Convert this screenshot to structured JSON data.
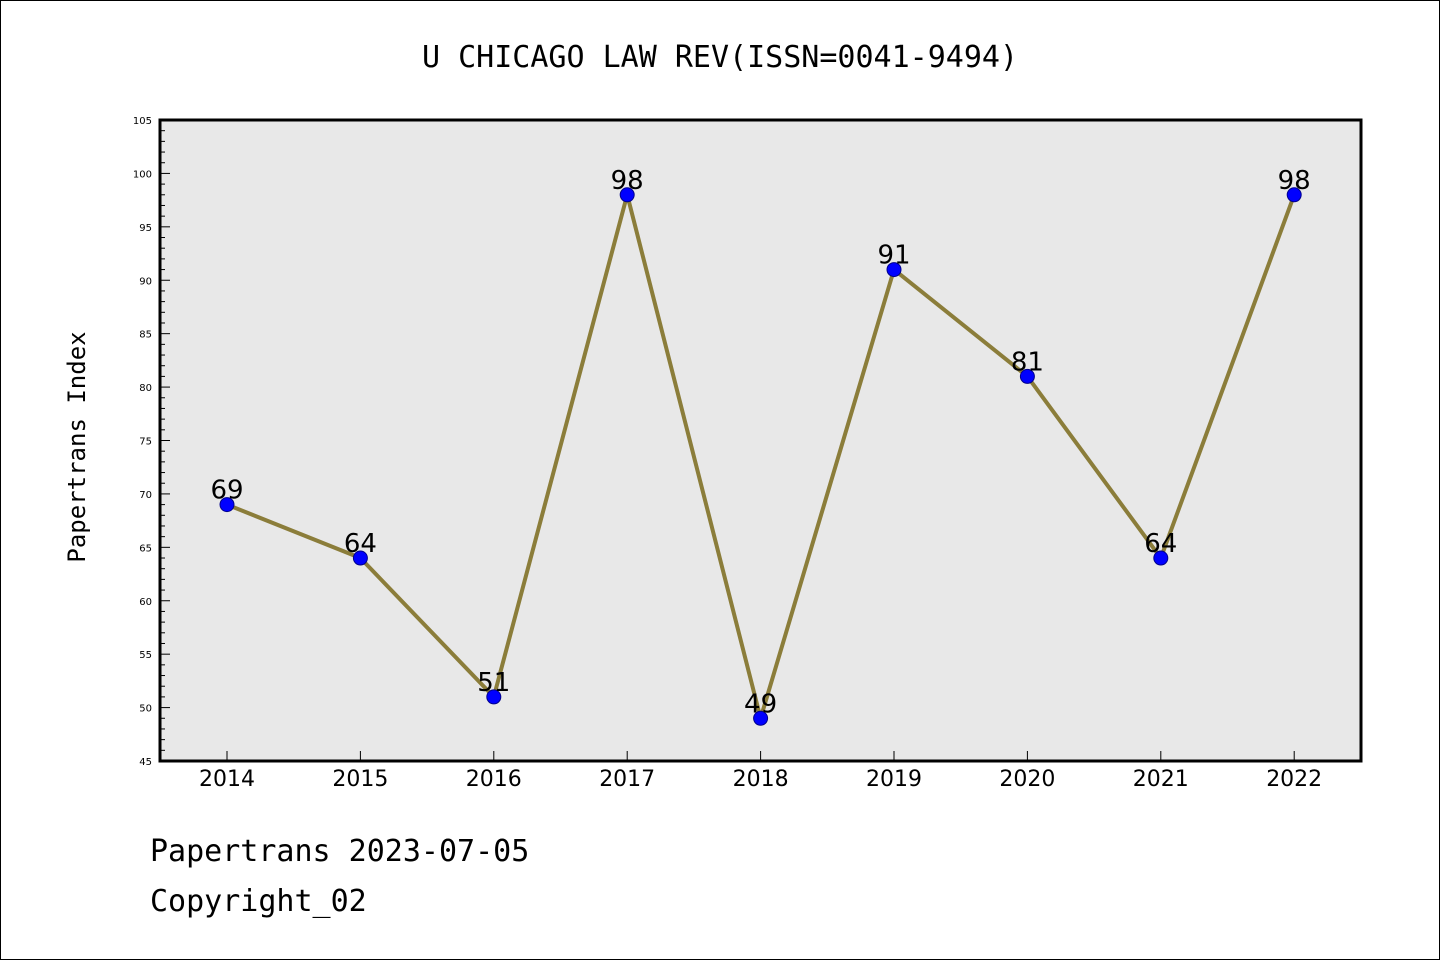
{
  "chart_data": {
    "type": "line",
    "title": "U CHICAGO LAW REV(ISSN=0041-9494)",
    "xlabel": "",
    "ylabel": "Papertrans Index",
    "categories": [
      "2014",
      "2015",
      "2016",
      "2017",
      "2018",
      "2019",
      "2020",
      "2021",
      "2022"
    ],
    "series": [
      {
        "values": [
          69,
          64,
          51,
          98,
          49,
          91,
          81,
          64,
          98
        ]
      }
    ],
    "ylim": [
      45,
      105
    ],
    "y_major_ticks": [
      45,
      50,
      55,
      60,
      65,
      70,
      75,
      80,
      85,
      90,
      95,
      100,
      105
    ],
    "y_minor_step": 1,
    "grid": false,
    "data_labels": true,
    "colors": {
      "plot_background": "#e8e8e8",
      "line": "#8b7d3a",
      "marker_fill": "#0000ff",
      "marker_stroke": "#00008b",
      "axis": "#000000"
    }
  },
  "footer": {
    "date_line": "Papertrans 2023-07-05",
    "copyright": "Copyright_02"
  }
}
